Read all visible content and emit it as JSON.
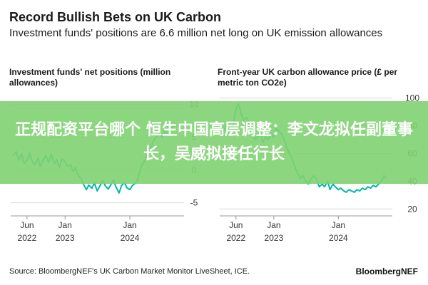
{
  "header": {
    "title": "Record Bullish Bets on UK Carbon",
    "subtitle": "Investment funds' positions are 6.6 million net long on UK emission allowances"
  },
  "overlay": {
    "text": "正规配资平台哪个 恒生中国高层调整：李文龙拟任副董事长，吴威拟接任行长"
  },
  "footer": {
    "source": "Source: BloombergNEF's UK Carbon Market Monitor LiveSheet, ICE.",
    "brand": "BloombergNEF"
  },
  "colors": {
    "line": "#00b8a9",
    "axis": "#999999",
    "grid": "#d9d9d9",
    "overlay": "#7fd172"
  },
  "chart_data": [
    {
      "type": "line",
      "title": "Investment funds' net positions (million allowances)",
      "yaxis_side": "right",
      "ylim": [
        -7,
        12
      ],
      "yticks": [
        -5,
        0,
        5,
        10
      ],
      "ytick_labels": [
        "-5",
        "0",
        "5",
        "10"
      ],
      "xlim": [
        "2022-03-01",
        "2024-11-01"
      ],
      "xticks": [
        {
          "date": "2022-06-01",
          "line1": "Jun",
          "line2": "2022"
        },
        {
          "date": "2023-01-01",
          "line1": "Jan",
          "line2": "2023"
        },
        {
          "date": "2024-01-01",
          "line1": "Jan",
          "line2": "2024"
        }
      ],
      "grid": true,
      "series": [
        {
          "x": [
            "2022-03-15",
            "2022-04-01",
            "2022-04-15",
            "2022-05-01",
            "2022-05-15",
            "2022-06-01",
            "2022-06-15",
            "2022-07-01",
            "2022-07-15",
            "2022-08-01",
            "2022-08-15",
            "2022-09-01",
            "2022-09-15",
            "2022-10-01",
            "2022-10-15",
            "2022-11-01",
            "2022-11-15",
            "2022-12-01",
            "2022-12-15",
            "2023-01-01",
            "2023-01-15",
            "2023-02-01",
            "2023-02-15",
            "2023-03-01",
            "2023-03-15",
            "2023-04-01",
            "2023-04-15",
            "2023-05-01",
            "2023-05-15",
            "2023-06-01",
            "2023-06-15",
            "2023-07-01",
            "2023-07-15",
            "2023-08-01",
            "2023-08-15",
            "2023-09-01",
            "2023-09-15",
            "2023-10-01",
            "2023-10-15",
            "2023-11-01",
            "2023-11-15",
            "2023-12-01",
            "2023-12-15",
            "2024-01-01",
            "2024-01-15",
            "2024-02-01",
            "2024-02-15",
            "2024-03-01",
            "2024-03-15",
            "2024-04-01",
            "2024-04-15",
            "2024-05-01",
            "2024-05-15",
            "2024-06-01",
            "2024-06-15",
            "2024-07-01",
            "2024-07-15",
            "2024-08-01",
            "2024-08-15",
            "2024-09-01",
            "2024-09-15",
            "2024-10-01"
          ],
          "values": [
            2.2,
            2.8,
            1.5,
            2.5,
            1.0,
            1.5,
            2.6,
            1.2,
            0.8,
            1.8,
            0.5,
            1.6,
            2.2,
            1.1,
            2.4,
            0.9,
            1.6,
            0.4,
            1.7,
            1.3,
            0.6,
            0.8,
            -0.2,
            0.4,
            -0.8,
            -1.3,
            -2.2,
            -3.0,
            -2.3,
            -2.8,
            -2.0,
            -3.2,
            -2.5,
            -1.6,
            -2.4,
            -2.9,
            -2.3,
            -1.5,
            -2.6,
            -3.5,
            -2.4,
            -1.9,
            -2.7,
            -3.0,
            -2.4,
            -2.0,
            -1.4,
            0.2,
            1.0,
            1.8,
            2.8,
            3.6,
            4.6,
            5.1,
            5.6,
            5.0,
            6.0,
            5.4,
            6.2,
            6.6,
            7.0,
            6.6
          ]
        }
      ]
    },
    {
      "type": "line",
      "title": "Front-year UK carbon allowance price (£ per metric ton CO2e)",
      "yaxis_side": "right",
      "ylim": [
        15,
        105
      ],
      "yticks": [
        20,
        40,
        60,
        80,
        100
      ],
      "ytick_labels": [
        "20",
        "40",
        "60",
        "80",
        "100"
      ],
      "xlim": [
        "2022-03-01",
        "2024-11-01"
      ],
      "xticks": [
        {
          "date": "2022-06-01",
          "line1": "Jun",
          "line2": "2022"
        },
        {
          "date": "2023-01-01",
          "line1": "Jan",
          "line2": "2023"
        },
        {
          "date": "2024-01-01",
          "line1": "Jan",
          "line2": "2024"
        }
      ],
      "grid": true,
      "series": [
        {
          "x": [
            "2022-03-15",
            "2022-04-01",
            "2022-04-15",
            "2022-05-01",
            "2022-05-15",
            "2022-06-01",
            "2022-06-15",
            "2022-07-01",
            "2022-07-15",
            "2022-08-01",
            "2022-08-15",
            "2022-09-01",
            "2022-09-15",
            "2022-10-01",
            "2022-10-15",
            "2022-11-01",
            "2022-11-15",
            "2022-12-01",
            "2022-12-15",
            "2023-01-01",
            "2023-01-15",
            "2023-02-01",
            "2023-02-15",
            "2023-03-01",
            "2023-03-15",
            "2023-04-01",
            "2023-04-15",
            "2023-05-01",
            "2023-05-15",
            "2023-06-01",
            "2023-06-15",
            "2023-07-01",
            "2023-07-15",
            "2023-08-01",
            "2023-08-15",
            "2023-09-01",
            "2023-09-15",
            "2023-10-01",
            "2023-10-15",
            "2023-11-01",
            "2023-11-15",
            "2023-12-01",
            "2023-12-15",
            "2024-01-01",
            "2024-01-15",
            "2024-02-01",
            "2024-02-15",
            "2024-03-01",
            "2024-03-15",
            "2024-04-01",
            "2024-04-15",
            "2024-05-01",
            "2024-05-15",
            "2024-06-01",
            "2024-06-15",
            "2024-07-01",
            "2024-07-15",
            "2024-08-01",
            "2024-08-15",
            "2024-09-01",
            "2024-09-15",
            "2024-10-01"
          ],
          "values": [
            75,
            78,
            82,
            78,
            80,
            92,
            96,
            88,
            84,
            86,
            82,
            74,
            70,
            72,
            76,
            68,
            72,
            70,
            74,
            72,
            78,
            76,
            74,
            70,
            64,
            60,
            56,
            50,
            46,
            42,
            44,
            40,
            38,
            42,
            44,
            41,
            36,
            38,
            36,
            40,
            34,
            38,
            36,
            34,
            35,
            33,
            32,
            34,
            33,
            32,
            34,
            33,
            35,
            34,
            36,
            35,
            37,
            36,
            38,
            40,
            44,
            42
          ]
        }
      ]
    }
  ]
}
